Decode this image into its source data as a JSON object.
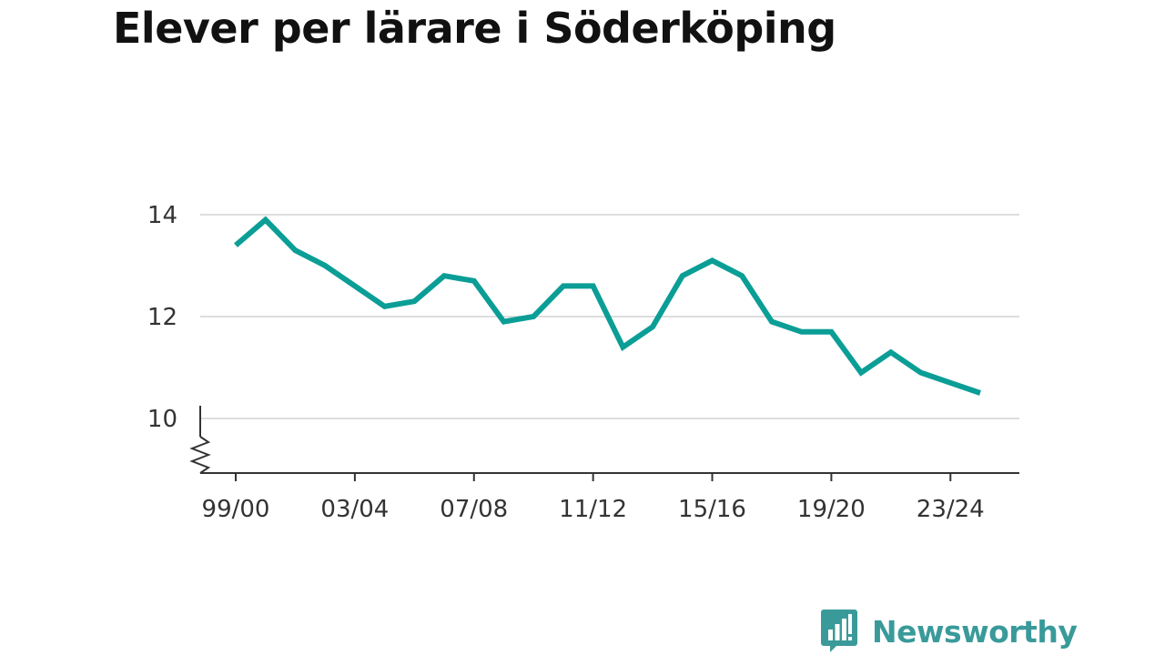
{
  "colors": {
    "line": "#0b9e96",
    "grid": "#dddddd",
    "axis": "#333333",
    "title": "#111111",
    "brand": "#3a9a9a"
  },
  "brand": {
    "name": "Newsworthy",
    "icon": "bar-chart-speech-bubble-icon"
  },
  "chart_data": {
    "type": "line",
    "title": "Elever per lärare i Söderköping",
    "xlabel": "",
    "ylabel": "",
    "ylim": [
      9,
      14.2
    ],
    "y_axis_break": true,
    "grid": true,
    "legend": "none",
    "yticks": [
      10,
      12,
      14
    ],
    "xticks": [
      "99/00",
      "03/04",
      "07/08",
      "11/12",
      "15/16",
      "19/20",
      "23/24"
    ],
    "categories": [
      "99/00",
      "00/01",
      "01/02",
      "02/03",
      "03/04",
      "04/05",
      "05/06",
      "06/07",
      "07/08",
      "08/09",
      "09/10",
      "10/11",
      "11/12",
      "12/13",
      "13/14",
      "14/15",
      "15/16",
      "16/17",
      "17/18",
      "18/19",
      "19/20",
      "20/21",
      "21/22",
      "22/23",
      "23/24",
      "24/25"
    ],
    "values": [
      13.4,
      13.9,
      13.3,
      13.0,
      12.6,
      12.2,
      12.3,
      12.8,
      12.7,
      11.9,
      12.0,
      12.6,
      12.6,
      11.4,
      11.8,
      12.8,
      13.1,
      12.8,
      11.9,
      11.7,
      11.7,
      10.9,
      11.3,
      10.9,
      10.7,
      10.5
    ]
  }
}
